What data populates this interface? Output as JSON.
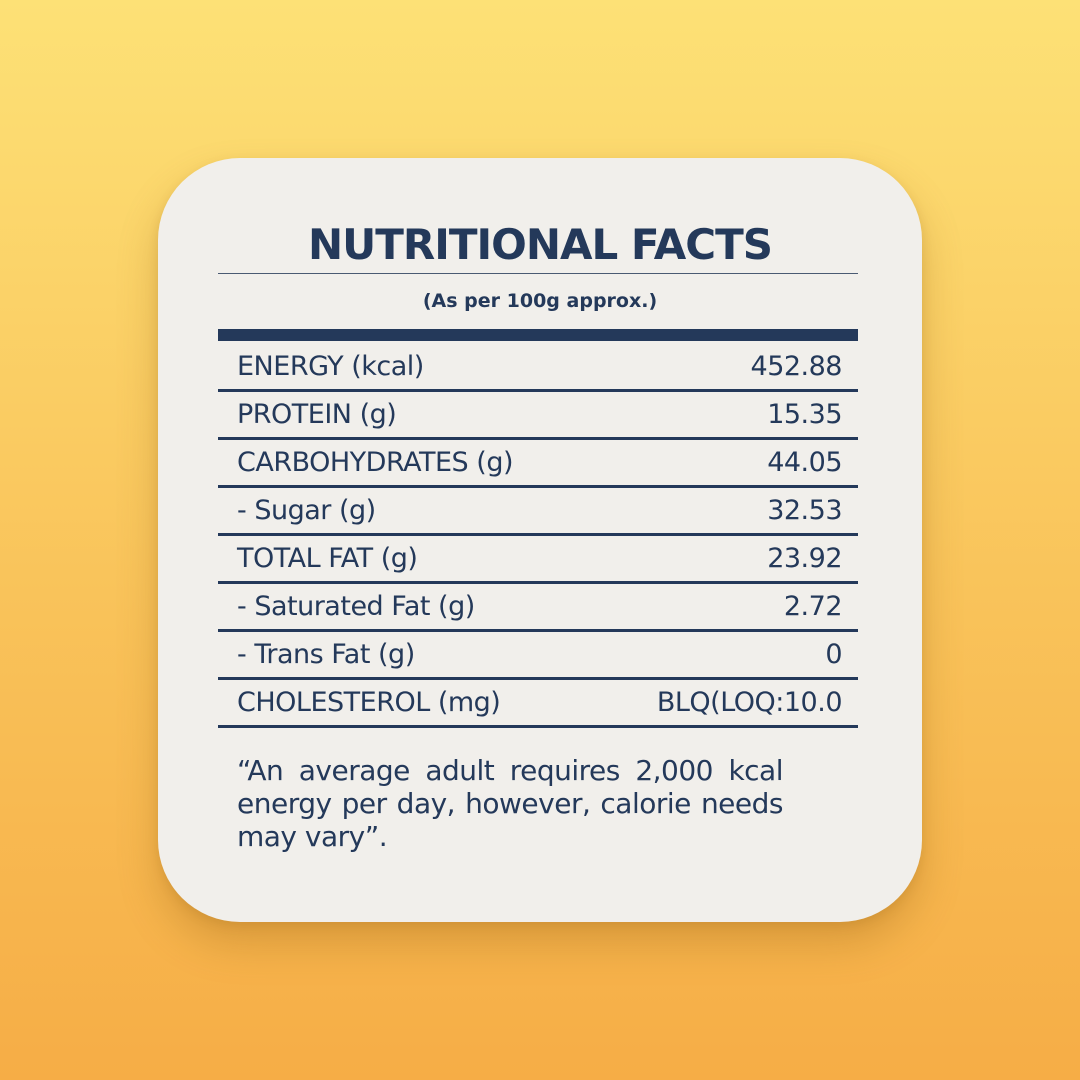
{
  "panel": {
    "title": "NUTRITIONAL FACTS",
    "subtitle": "(As per 100g approx.)",
    "rows": [
      {
        "label": "ENERGY (kcal)",
        "value": "452.88"
      },
      {
        "label": "PROTEIN (g)",
        "value": "15.35"
      },
      {
        "label": "CARBOHYDRATES (g)",
        "value": "44.05"
      },
      {
        "label": "- Sugar (g)",
        "value": "32.53"
      },
      {
        "label": "TOTAL FAT (g)",
        "value": "23.92"
      },
      {
        "label": "- Saturated Fat (g)",
        "value": "2.72"
      },
      {
        "label": "- Trans Fat (g)",
        "value": "0"
      },
      {
        "label": "CHOLESTEROL (mg)",
        "value": "BLQ(LOQ:10.0"
      }
    ],
    "footnote": "“An average adult requires 2,000 kcal energy per day, however, calorie needs may vary”."
  },
  "colors": {
    "ink": "#24395a",
    "card": "#f1efeb",
    "background_top": "#fde176",
    "background_bottom": "#f6ad46"
  }
}
